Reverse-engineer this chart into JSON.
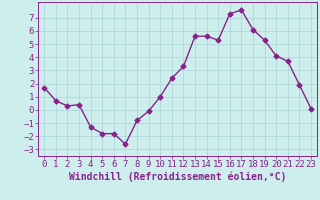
{
  "x": [
    0,
    1,
    2,
    3,
    4,
    5,
    6,
    7,
    8,
    9,
    10,
    11,
    12,
    13,
    14,
    15,
    16,
    17,
    18,
    19,
    20,
    21,
    22,
    23
  ],
  "y": [
    1.7,
    0.7,
    0.3,
    0.4,
    -1.3,
    -1.8,
    -1.8,
    -2.6,
    -0.8,
    -0.1,
    1.0,
    2.4,
    3.3,
    5.6,
    5.6,
    5.3,
    7.3,
    7.6,
    6.1,
    5.3,
    4.1,
    3.7,
    1.9,
    0.1
  ],
  "line_color": "#882288",
  "marker": "D",
  "markersize": 2.5,
  "linewidth": 1.0,
  "bg_color": "#ceeeed",
  "grid_color": "#aed8d8",
  "xlabel": "Windchill (Refroidissement éolien,°C)",
  "xlabel_fontsize": 7,
  "tick_fontsize": 6.5,
  "ylim": [
    -3.5,
    8.2
  ],
  "xlim": [
    -0.5,
    23.5
  ],
  "yticks": [
    -3,
    -2,
    -1,
    0,
    1,
    2,
    3,
    4,
    5,
    6,
    7
  ],
  "xticks": [
    0,
    1,
    2,
    3,
    4,
    5,
    6,
    7,
    8,
    9,
    10,
    11,
    12,
    13,
    14,
    15,
    16,
    17,
    18,
    19,
    20,
    21,
    22,
    23
  ]
}
